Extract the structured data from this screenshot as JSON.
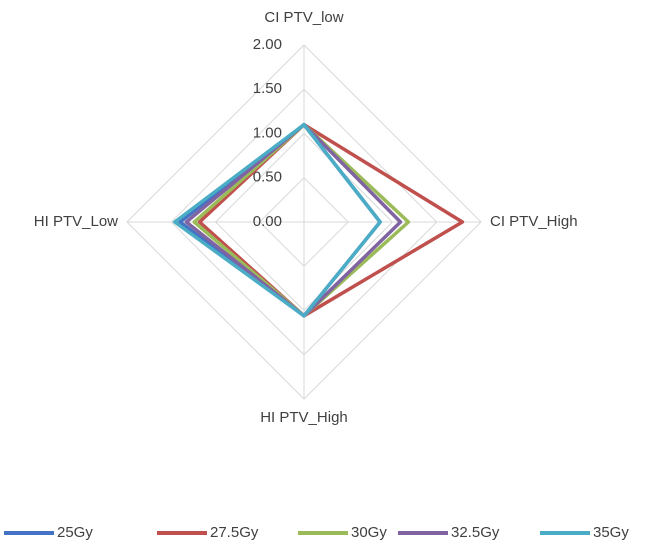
{
  "chart_data": {
    "type": "radar",
    "categories": [
      "CI PTV_low",
      "CI PTV_High",
      "HI PTV_High",
      "HI PTV_Low"
    ],
    "rlim": [
      0,
      2
    ],
    "rticks": [
      {
        "value": 0,
        "label": "0.00"
      },
      {
        "value": 0.5,
        "label": "0.50"
      },
      {
        "value": 1,
        "label": "1.00"
      },
      {
        "value": 1.5,
        "label": "1.50"
      },
      {
        "value": 2,
        "label": "2.00"
      }
    ],
    "grid": true,
    "legend": "bottom",
    "series": [
      {
        "name": "25Gy",
        "color": "#4472c4",
        "values": [
          1.1,
          0.86,
          1.06,
          1.4
        ]
      },
      {
        "name": "27.5Gy",
        "color": "#c0504d",
        "values": [
          1.1,
          1.79,
          1.06,
          1.18
        ]
      },
      {
        "name": "30Gy",
        "color": "#9bbb59",
        "values": [
          1.1,
          1.18,
          1.06,
          1.24
        ]
      },
      {
        "name": "32.5Gy",
        "color": "#8064a2",
        "values": [
          1.1,
          1.09,
          1.06,
          1.33
        ]
      },
      {
        "name": "35Gy",
        "color": "#4bacc6",
        "values": [
          1.1,
          0.86,
          1.06,
          1.46
        ]
      }
    ]
  }
}
